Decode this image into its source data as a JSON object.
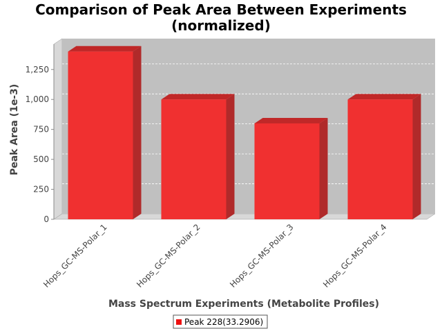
{
  "chart_data": {
    "type": "bar",
    "title": "Comparison of Peak Area Between Experiments",
    "subtitle": "(normalized)",
    "xlabel": "Mass Spectrum Experiments (Metabolite Profiles)",
    "ylabel": "Peak Area (1e-3)",
    "categories": [
      "Hops_GC-MS-Polar_1",
      "Hops_GC-MS-Polar_2",
      "Hops_GC-MS-Polar_3",
      "Hops_GC-MS-Polar_4"
    ],
    "series": [
      {
        "name": "Peak 228(33.2906)",
        "values": [
          1400,
          1000,
          800,
          1000
        ]
      }
    ],
    "ylim": [
      0,
      1450
    ],
    "yticks": [
      0,
      250,
      500,
      750,
      1000,
      1250
    ],
    "ytick_labels": [
      "0",
      "250",
      "500",
      "750",
      "1,000",
      "1,250"
    ],
    "grid": true,
    "style": "3d-bar",
    "legend_position": "bottom",
    "colors": {
      "bar": "#f03030",
      "bar_top": "#c02828",
      "bar_side": "#b02a2a",
      "plot_bg": "#c0c0c0",
      "wall": "#d8d8d8",
      "gridline": "#ffffff"
    }
  }
}
